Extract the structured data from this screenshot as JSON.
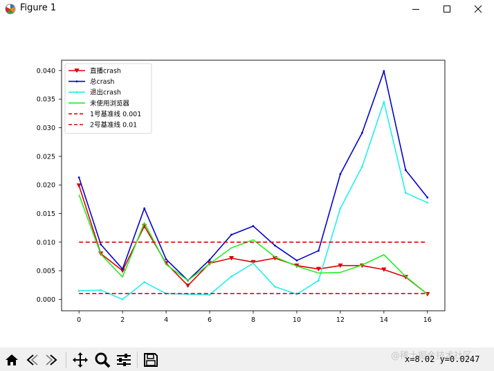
{
  "window": {
    "title": "Figure 1"
  },
  "toolbar": {
    "buttons": [
      "home-icon",
      "back-icon",
      "forward-icon",
      "pan-icon",
      "zoom-icon",
      "configure-icon",
      "save-icon"
    ],
    "coords": "x=8.02 y=0.0247",
    "watermark": "@稀土掘金技术社区"
  },
  "chart_data": {
    "type": "line",
    "title": "",
    "xlabel": "",
    "ylabel": "",
    "xlim": [
      -0.8,
      16.8
    ],
    "ylim": [
      -0.002,
      0.0418
    ],
    "xticks": [
      0,
      2,
      4,
      6,
      8,
      10,
      12,
      14,
      16
    ],
    "yticks": [
      0.0,
      0.005,
      0.01,
      0.015,
      0.02,
      0.025,
      0.03,
      0.035,
      0.04
    ],
    "ytick_labels": [
      "0.000",
      "0.005",
      "0.010",
      "0.015",
      "0.020",
      "0.025",
      "0.030",
      "0.035",
      "0.040"
    ],
    "grid": false,
    "legend_position": "top-left",
    "x": [
      0,
      1,
      2,
      3,
      4,
      5,
      6,
      7,
      8,
      9,
      10,
      11,
      12,
      13,
      14,
      15,
      16
    ],
    "series": [
      {
        "name": "直播crash",
        "color": "#dd0000",
        "dash": "solid",
        "marker": "triangle-down",
        "values": [
          0.0199,
          0.008,
          0.005,
          0.0128,
          0.0063,
          0.0024,
          0.0063,
          0.0072,
          0.0065,
          0.0072,
          0.0059,
          0.0053,
          0.0059,
          0.0059,
          0.0052,
          0.0039,
          0.0009
        ]
      },
      {
        "name": "总crash",
        "color": "#0000cc",
        "dash": "solid",
        "marker": "dot",
        "values": [
          0.0213,
          0.0096,
          0.0053,
          0.0159,
          0.007,
          0.0033,
          0.0069,
          0.0113,
          0.0128,
          0.0094,
          0.0068,
          0.0085,
          0.0219,
          0.0291,
          0.0399,
          0.0226,
          0.0178
        ]
      },
      {
        "name": "退出crash",
        "color": "#22eeee",
        "dash": "solid",
        "marker": "dot",
        "values": [
          0.0015,
          0.0016,
          0.0,
          0.003,
          0.001,
          0.0009,
          0.0008,
          0.004,
          0.0063,
          0.0022,
          0.0009,
          0.0033,
          0.0159,
          0.0232,
          0.0345,
          0.0186,
          0.0169
        ]
      },
      {
        "name": "未使用浏览器",
        "color": "#22ee22",
        "dash": "solid",
        "marker": "none",
        "values": [
          0.0183,
          0.0079,
          0.0039,
          0.0134,
          0.0061,
          0.0033,
          0.0062,
          0.009,
          0.0104,
          0.0074,
          0.0058,
          0.0046,
          0.0047,
          0.006,
          0.0078,
          0.004,
          0.0009
        ]
      },
      {
        "name": "1号基准线 0.001",
        "color": "#dd0000",
        "dash": "dashed",
        "marker": "none",
        "values": [
          0.001,
          0.001,
          0.001,
          0.001,
          0.001,
          0.001,
          0.001,
          0.001,
          0.001,
          0.001,
          0.001,
          0.001,
          0.001,
          0.001,
          0.001,
          0.001,
          0.001
        ]
      },
      {
        "name": "2号基准线 0.01",
        "color": "#dd0000",
        "dash": "dashed",
        "marker": "none",
        "values": [
          0.01,
          0.01,
          0.01,
          0.01,
          0.01,
          0.01,
          0.01,
          0.01,
          0.01,
          0.01,
          0.01,
          0.01,
          0.01,
          0.01,
          0.01,
          0.01,
          0.01
        ]
      }
    ]
  }
}
